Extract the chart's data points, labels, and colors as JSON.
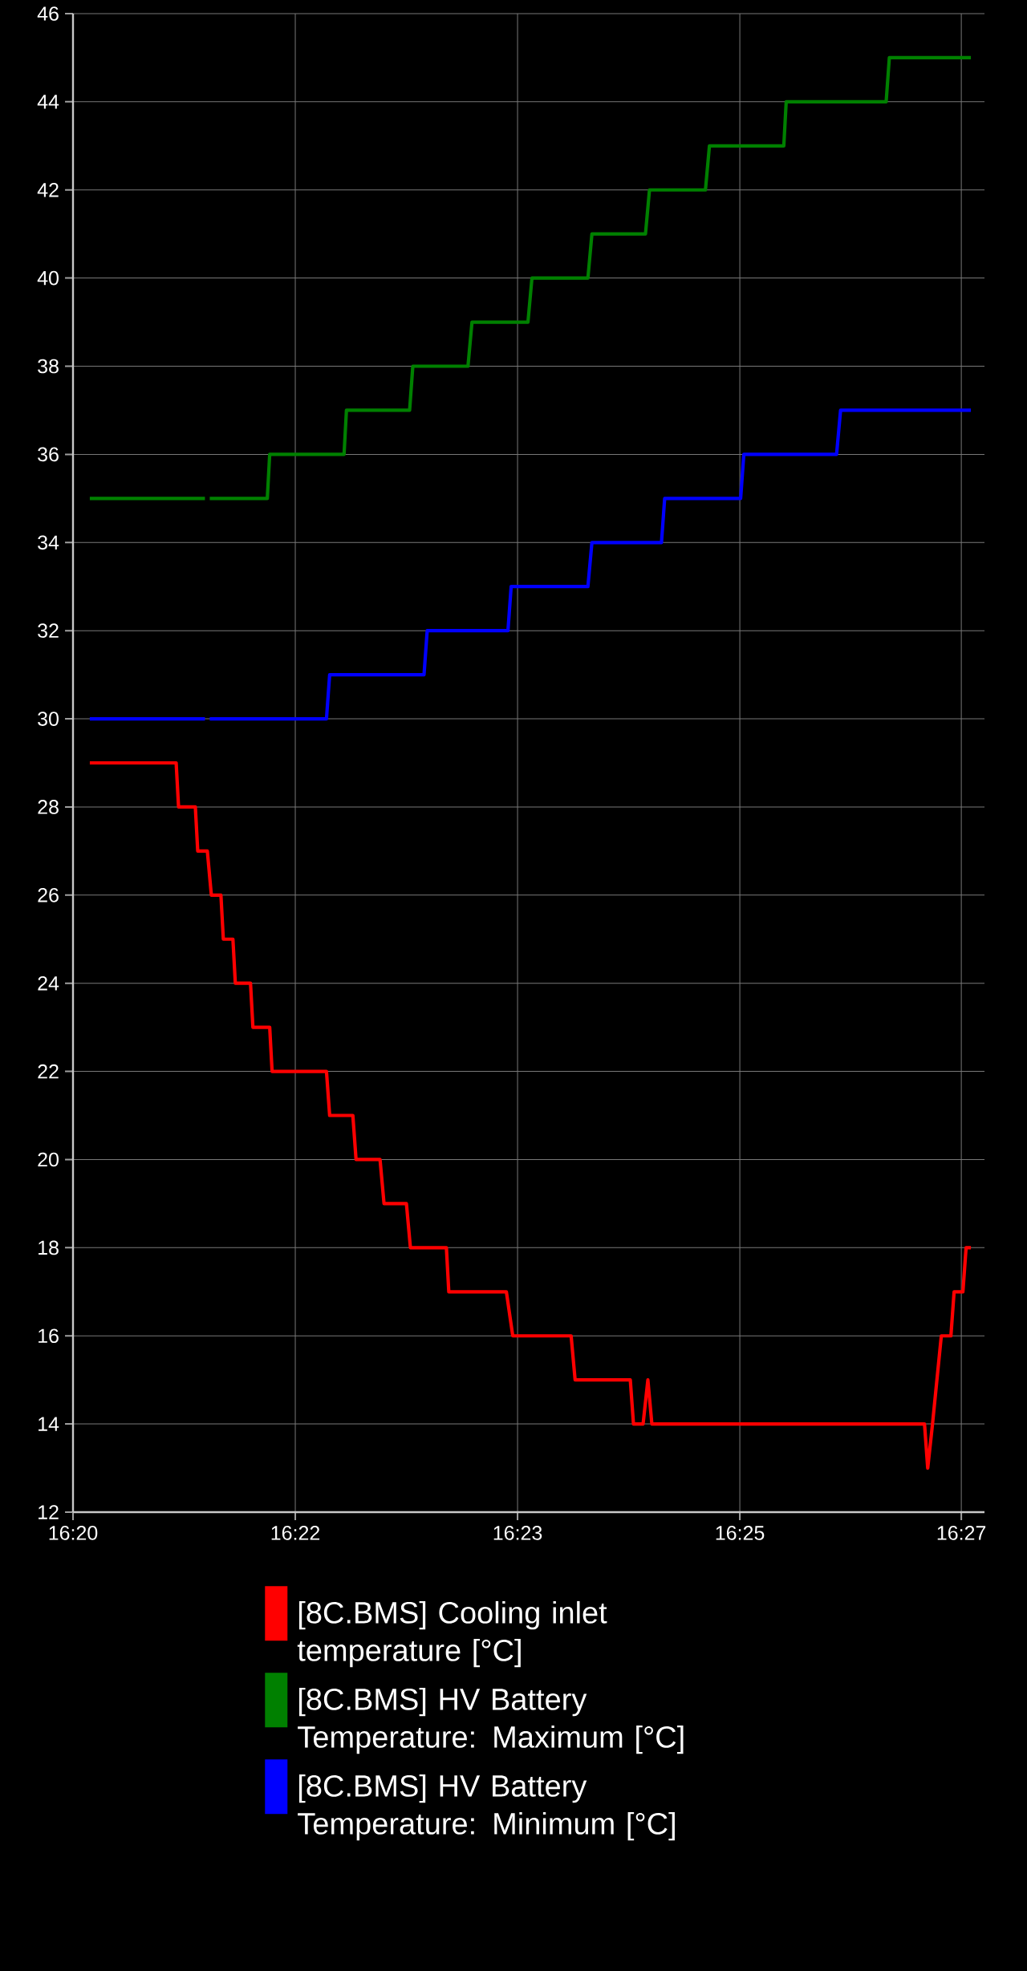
{
  "chart_data": {
    "type": "line",
    "xlim": [
      16.3333,
      16.4473
    ],
    "xticks": [
      {
        "value": 16.3333,
        "label": "16:20"
      },
      {
        "value": 16.3611,
        "label": "16:22"
      },
      {
        "value": 16.3889,
        "label": "16:23"
      },
      {
        "value": 16.4167,
        "label": "16:25"
      },
      {
        "value": 16.4444,
        "label": "16:27"
      }
    ],
    "ylim": [
      12,
      46
    ],
    "yticks": [
      12,
      14,
      16,
      18,
      20,
      22,
      24,
      26,
      28,
      30,
      32,
      34,
      36,
      38,
      40,
      42,
      44,
      46
    ],
    "grid": true,
    "legend": "bottom",
    "series": [
      {
        "name": "[8C.BMS] Cooling inlet temperature [°C]",
        "color": "#ff0000",
        "x": [
          16.3354,
          16.3462,
          16.3465,
          16.3486,
          16.3489,
          16.3501,
          16.3506,
          16.3518,
          16.3521,
          16.3533,
          16.3536,
          16.3555,
          16.3558,
          16.3579,
          16.3582,
          16.365,
          16.3654,
          16.3683,
          16.3687,
          16.3717,
          16.3722,
          16.375,
          16.3755,
          16.38,
          16.3803,
          16.3875,
          16.3883,
          16.3956,
          16.3961,
          16.403,
          16.4034,
          16.4046,
          16.4052,
          16.4057,
          16.4398,
          16.4402,
          16.4408,
          16.4419,
          16.4431,
          16.4435,
          16.4446,
          16.445,
          16.4456
        ],
        "values": [
          29,
          29,
          28,
          28,
          27,
          27,
          26,
          26,
          25,
          25,
          24,
          24,
          23,
          23,
          22,
          22,
          21,
          21,
          20,
          20,
          19,
          19,
          18,
          18,
          17,
          17,
          16,
          16,
          15,
          15,
          14,
          14,
          15,
          14,
          14,
          13,
          14,
          16,
          16,
          17,
          17,
          18,
          18
        ]
      },
      {
        "name": "[8C.BMS] HV Battery Temperature: Maximum [°C]",
        "color": "#008000",
        "x": [
          16.3354,
          16.3498,
          16.3501,
          16.3504,
          16.3576,
          16.3579,
          16.3672,
          16.3675,
          16.3754,
          16.3758,
          16.3827,
          16.3832,
          16.3902,
          16.3907,
          16.3977,
          16.3982,
          16.4049,
          16.4054,
          16.4124,
          16.4129,
          16.4222,
          16.4225,
          16.435,
          16.4354,
          16.4456
        ],
        "values": [
          35,
          35,
          null,
          35,
          35,
          36,
          36,
          37,
          37,
          38,
          38,
          39,
          39,
          40,
          40,
          41,
          41,
          42,
          42,
          43,
          43,
          44,
          44,
          45,
          45
        ]
      },
      {
        "name": "[8C.BMS] HV Battery Temperature: Minimum [°C]",
        "color": "#0000ff",
        "x": [
          16.3354,
          16.3498,
          16.3501,
          16.3504,
          16.365,
          16.3654,
          16.3772,
          16.3776,
          16.3877,
          16.3881,
          16.3977,
          16.3982,
          16.4069,
          16.4073,
          16.4168,
          16.4172,
          16.4288,
          16.4293,
          16.4456
        ],
        "values": [
          30,
          30,
          null,
          30,
          30,
          31,
          31,
          32,
          32,
          33,
          33,
          34,
          34,
          35,
          35,
          36,
          36,
          37,
          37
        ]
      }
    ]
  }
}
